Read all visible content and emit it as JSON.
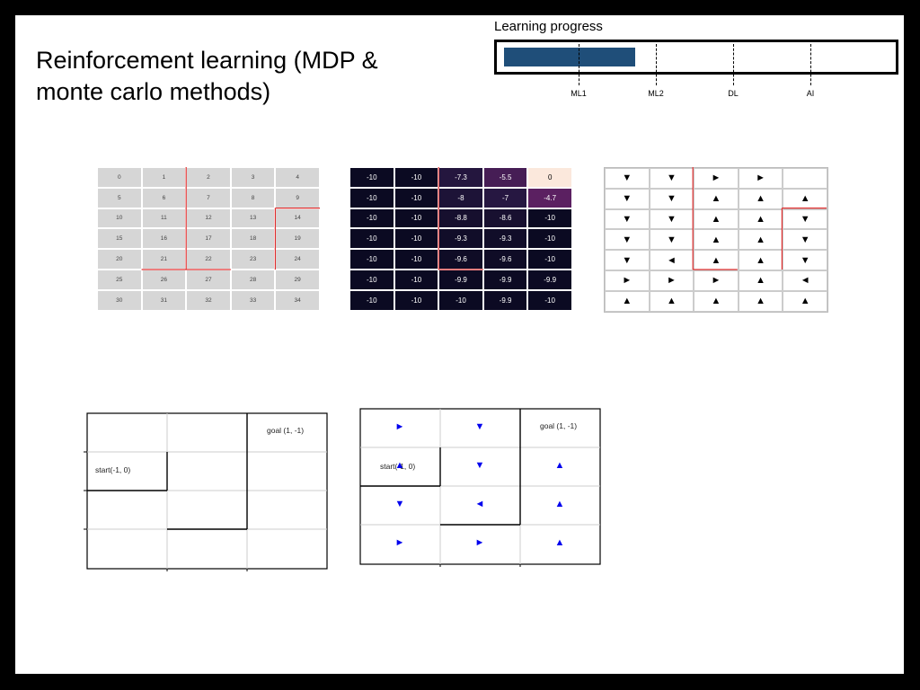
{
  "title_line1": "Reinforcement learning (MDP &",
  "title_line2": "monte carlo methods)",
  "progress": {
    "label": "Learning progress",
    "fill_fraction": 0.34,
    "ticks": [
      {
        "label": "ML1",
        "fraction": 0.2
      },
      {
        "label": "ML2",
        "fraction": 0.4
      },
      {
        "label": "DL",
        "fraction": 0.6
      },
      {
        "label": "AI",
        "fraction": 0.8
      }
    ],
    "fill_color": "#1f4e79"
  },
  "grid1": {
    "cells": [
      "0",
      "1",
      "2",
      "3",
      "4",
      "5",
      "6",
      "7",
      "8",
      "9",
      "10",
      "11",
      "12",
      "13",
      "14",
      "15",
      "16",
      "17",
      "18",
      "19",
      "20",
      "21",
      "22",
      "23",
      "24",
      "25",
      "26",
      "27",
      "28",
      "29",
      "30",
      "31",
      "32",
      "33",
      "34"
    ]
  },
  "grid2": {
    "cells": [
      "-10",
      "-10",
      "-7.3",
      "-5.5",
      "0",
      "-10",
      "-10",
      "-8",
      "-7",
      "-4.7",
      "-10",
      "-10",
      "-8.8",
      "-8.6",
      "-10",
      "-10",
      "-10",
      "-9.3",
      "-9.3",
      "-10",
      "-10",
      "-10",
      "-9.6",
      "-9.6",
      "-10",
      "-10",
      "-10",
      "-9.9",
      "-9.9",
      "-9.9",
      "-10",
      "-10",
      "-10",
      "-9.9",
      "-10"
    ],
    "low_color": "#0b0a22",
    "high_color": "#fbe8dc"
  },
  "grid3": {
    "cells": [
      "▼",
      "▼",
      "►",
      "►",
      "",
      "▼",
      "▼",
      "▲",
      "▲",
      "▲",
      "▼",
      "▼",
      "▲",
      "▲",
      "▼",
      "▼",
      "▼",
      "▲",
      "▲",
      "▼",
      "▼",
      "◄",
      "▲",
      "▲",
      "▼",
      "►",
      "►",
      "►",
      "▲",
      "◄",
      "▲",
      "▲",
      "▲",
      "▲",
      "▲"
    ]
  },
  "grid4": {
    "goal_label": "goal (1, -1)",
    "start_label": "start(-1, 0)"
  },
  "grid5": {
    "goal_label": "goal (1, -1)",
    "start_label": "start(-1, 0)",
    "arrows": [
      "►",
      "▼",
      "",
      "▲",
      "▼",
      "▲",
      "▼",
      "◄",
      "▲",
      "►",
      "►",
      "▲"
    ],
    "arrow_color": "#0000ee"
  }
}
